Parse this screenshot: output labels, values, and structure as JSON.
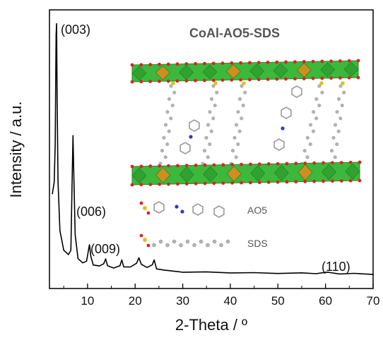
{
  "chart_data": {
    "type": "line",
    "xlabel": "2-Theta / º",
    "ylabel": "Intensity / a.u.",
    "xlim": [
      2,
      70
    ],
    "xticks": [
      10,
      20,
      30,
      40,
      50,
      60,
      70
    ],
    "yticks_shown": false,
    "grid": false,
    "series": [
      {
        "x": [
          2.6,
          3.0,
          3.2,
          3.4,
          3.5,
          3.6,
          3.8,
          4.2,
          5.0,
          6.0,
          6.5,
          6.8,
          6.95,
          7.1,
          7.4,
          8.0,
          9.0,
          9.8,
          10.2,
          10.4,
          10.7,
          11.2,
          12.5,
          13.4,
          13.8,
          14.2,
          15.5,
          16.8,
          17.2,
          17.6,
          19.0,
          20.3,
          20.8,
          21.3,
          22.5,
          23.6,
          24.0,
          24.5,
          26.0,
          30.0,
          35.0,
          40.0,
          45.0,
          50.0,
          55.0,
          58.0,
          60.0,
          60.5,
          61.0,
          63.0,
          66.0,
          70.0
        ],
        "y": [
          330,
          380,
          520,
          960,
          1000,
          720,
          380,
          190,
          110,
          96,
          110,
          420,
          560,
          430,
          170,
          80,
          60,
          70,
          110,
          135,
          85,
          55,
          48,
          60,
          76,
          52,
          40,
          52,
          72,
          48,
          44,
          62,
          80,
          58,
          42,
          56,
          72,
          40,
          32,
          27,
          25,
          24,
          22,
          22,
          21,
          21,
          23,
          27,
          22,
          20,
          19,
          18
        ]
      }
    ],
    "annotations": [
      {
        "text": "(003)",
        "x": 3.5
      },
      {
        "text": "(006)",
        "x": 6.95
      },
      {
        "text": "(009)",
        "x": 10.4
      },
      {
        "text": "(110)",
        "x": 60.5
      }
    ]
  },
  "inset": {
    "title": "CoAl-AO5-SDS",
    "legend": [
      {
        "label": "AO5"
      },
      {
        "label": "SDS"
      }
    ]
  },
  "colors": {
    "line": "#000000",
    "layer_green": "#3cb83c",
    "layer_orange": "#e08a1e",
    "oxygen": "#e02020",
    "carbon": "#b4b4b4",
    "nitrogen": "#2a3bc8",
    "sulfur": "#e0c020",
    "inset_text": "#555555"
  }
}
